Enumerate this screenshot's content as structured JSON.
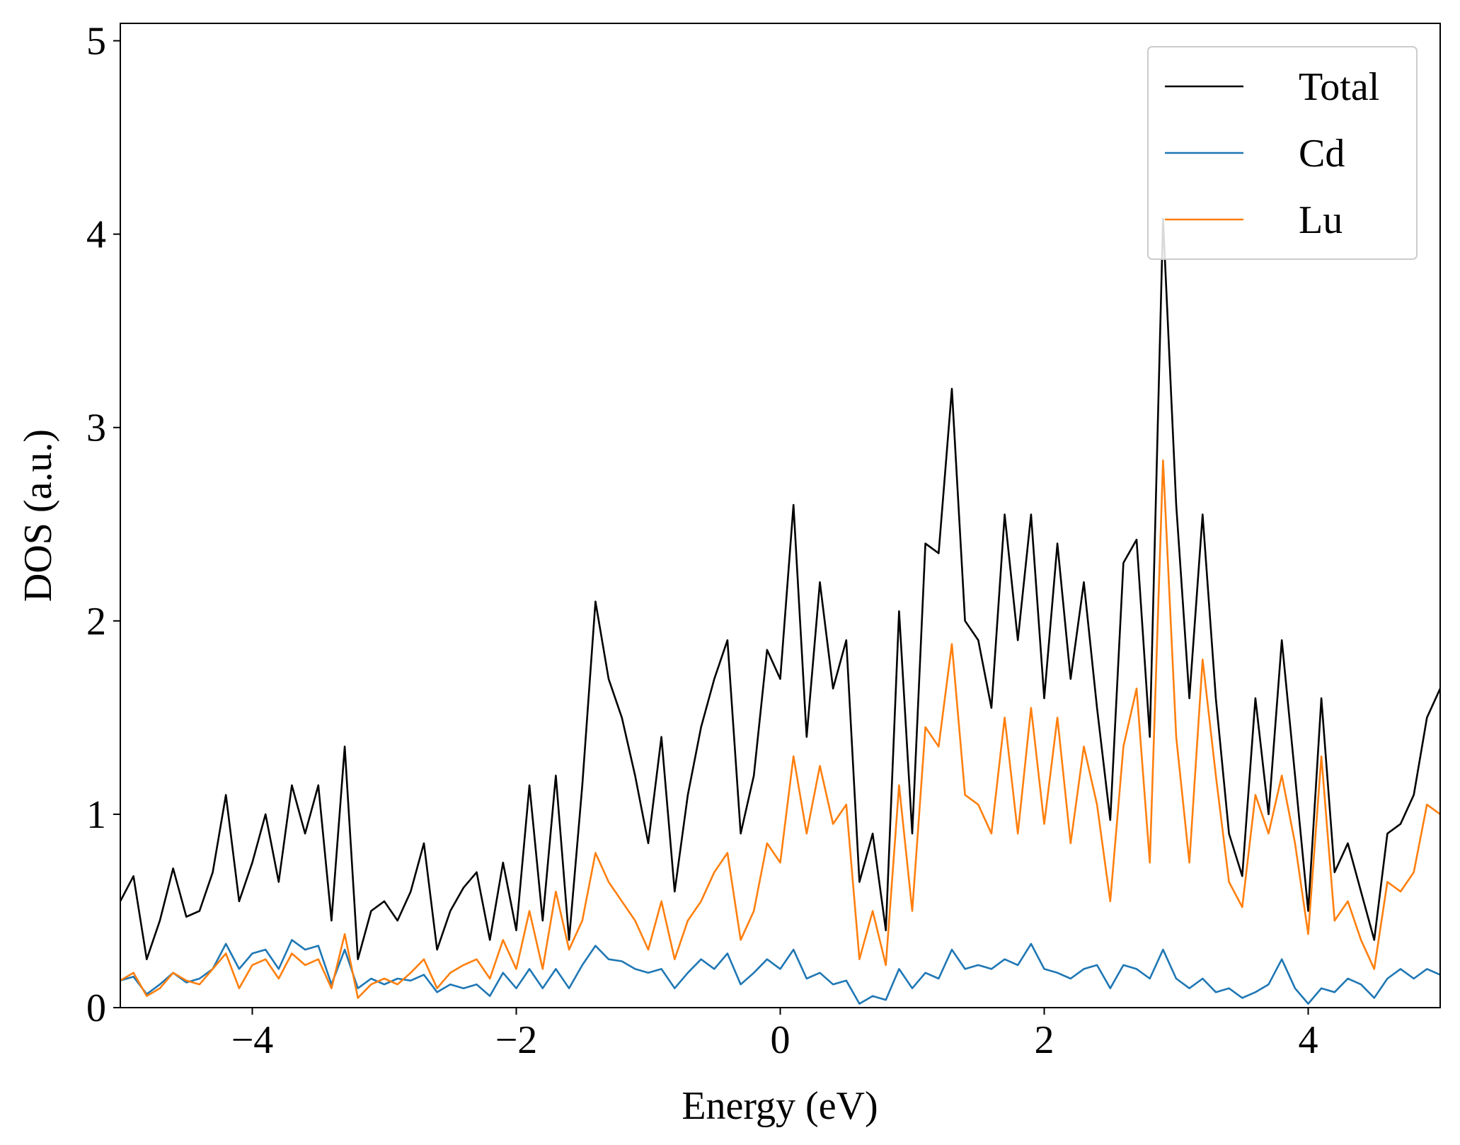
{
  "chart_data": {
    "type": "line",
    "xlabel": "Energy (eV)",
    "ylabel": "DOS (a.u.)",
    "xlim": [
      -5,
      5
    ],
    "ylim": [
      0,
      5.09
    ],
    "xticks": [
      {
        "value": -4,
        "label": "−4"
      },
      {
        "value": -2,
        "label": "−2"
      },
      0,
      2,
      4
    ],
    "yticks": [
      0,
      1,
      2,
      3,
      4,
      5
    ],
    "legend": "upper right",
    "x": [
      -5.0,
      -4.9,
      -4.8,
      -4.7,
      -4.6,
      -4.5,
      -4.4,
      -4.3,
      -4.2,
      -4.1,
      -4.0,
      -3.9,
      -3.8,
      -3.7,
      -3.6,
      -3.5,
      -3.4,
      -3.3,
      -3.2,
      -3.1,
      -3.0,
      -2.9,
      -2.8,
      -2.7,
      -2.6,
      -2.5,
      -2.4,
      -2.3,
      -2.2,
      -2.1,
      -2.0,
      -1.9,
      -1.8,
      -1.7,
      -1.6,
      -1.5,
      -1.4,
      -1.3,
      -1.2,
      -1.1,
      -1.0,
      -0.9,
      -0.8,
      -0.7,
      -0.6,
      -0.5,
      -0.4,
      -0.3,
      -0.2,
      -0.1,
      0.0,
      0.1,
      0.2,
      0.3,
      0.4,
      0.5,
      0.6,
      0.7,
      0.8,
      0.9,
      1.0,
      1.1,
      1.2,
      1.3,
      1.4,
      1.5,
      1.6,
      1.7,
      1.8,
      1.9,
      2.0,
      2.1,
      2.2,
      2.3,
      2.4,
      2.5,
      2.6,
      2.7,
      2.8,
      2.9,
      3.0,
      3.1,
      3.2,
      3.3,
      3.4,
      3.5,
      3.6,
      3.7,
      3.8,
      3.9,
      4.0,
      4.1,
      4.2,
      4.3,
      4.4,
      4.5,
      4.6,
      4.7,
      4.8,
      4.9,
      5.0
    ],
    "series": [
      {
        "name": "Total",
        "color": "#000000",
        "values": [
          0.55,
          0.68,
          0.25,
          0.45,
          0.72,
          0.47,
          0.5,
          0.7,
          1.1,
          0.55,
          0.75,
          1.0,
          0.65,
          1.15,
          0.9,
          1.15,
          0.45,
          1.35,
          0.25,
          0.5,
          0.55,
          0.45,
          0.6,
          0.85,
          0.3,
          0.5,
          0.62,
          0.7,
          0.35,
          0.75,
          0.4,
          1.15,
          0.45,
          1.2,
          0.35,
          1.15,
          2.1,
          1.7,
          1.5,
          1.2,
          0.85,
          1.4,
          0.6,
          1.1,
          1.45,
          1.7,
          1.9,
          0.9,
          1.2,
          1.85,
          1.7,
          2.6,
          1.4,
          2.2,
          1.65,
          1.9,
          0.65,
          0.9,
          0.4,
          2.05,
          0.9,
          2.4,
          2.35,
          3.2,
          2.0,
          1.9,
          1.55,
          2.55,
          1.9,
          2.55,
          1.6,
          2.4,
          1.7,
          2.2,
          1.55,
          0.97,
          2.3,
          2.42,
          1.4,
          4.08,
          2.6,
          1.6,
          2.55,
          1.6,
          0.9,
          0.68,
          1.6,
          1.0,
          1.9,
          1.2,
          0.5,
          1.6,
          0.7,
          0.85,
          0.6,
          0.35,
          0.9,
          0.95,
          1.1,
          1.5,
          1.65
        ]
      },
      {
        "name": "Cd",
        "color": "#1f77b4",
        "values": [
          0.14,
          0.16,
          0.07,
          0.12,
          0.18,
          0.13,
          0.15,
          0.2,
          0.33,
          0.2,
          0.28,
          0.3,
          0.2,
          0.35,
          0.3,
          0.32,
          0.12,
          0.3,
          0.1,
          0.15,
          0.12,
          0.15,
          0.14,
          0.17,
          0.08,
          0.12,
          0.1,
          0.12,
          0.06,
          0.18,
          0.1,
          0.2,
          0.1,
          0.2,
          0.1,
          0.22,
          0.32,
          0.25,
          0.24,
          0.2,
          0.18,
          0.2,
          0.1,
          0.18,
          0.25,
          0.2,
          0.28,
          0.12,
          0.18,
          0.25,
          0.2,
          0.3,
          0.15,
          0.18,
          0.12,
          0.14,
          0.02,
          0.06,
          0.04,
          0.2,
          0.1,
          0.18,
          0.15,
          0.3,
          0.2,
          0.22,
          0.2,
          0.25,
          0.22,
          0.33,
          0.2,
          0.18,
          0.15,
          0.2,
          0.22,
          0.1,
          0.22,
          0.2,
          0.15,
          0.3,
          0.15,
          0.1,
          0.15,
          0.08,
          0.1,
          0.05,
          0.08,
          0.12,
          0.25,
          0.1,
          0.02,
          0.1,
          0.08,
          0.15,
          0.12,
          0.05,
          0.15,
          0.2,
          0.15,
          0.2,
          0.17
        ]
      },
      {
        "name": "Lu",
        "color": "#ff7f0e",
        "values": [
          0.14,
          0.18,
          0.06,
          0.1,
          0.18,
          0.14,
          0.12,
          0.2,
          0.28,
          0.1,
          0.22,
          0.25,
          0.15,
          0.28,
          0.22,
          0.25,
          0.1,
          0.38,
          0.05,
          0.12,
          0.15,
          0.12,
          0.18,
          0.25,
          0.1,
          0.18,
          0.22,
          0.25,
          0.15,
          0.35,
          0.2,
          0.5,
          0.2,
          0.6,
          0.3,
          0.45,
          0.8,
          0.65,
          0.55,
          0.45,
          0.3,
          0.55,
          0.25,
          0.45,
          0.55,
          0.7,
          0.8,
          0.35,
          0.5,
          0.85,
          0.75,
          1.3,
          0.9,
          1.25,
          0.95,
          1.05,
          0.25,
          0.5,
          0.22,
          1.15,
          0.5,
          1.45,
          1.35,
          1.88,
          1.1,
          1.05,
          0.9,
          1.5,
          0.9,
          1.55,
          0.95,
          1.5,
          0.85,
          1.35,
          1.05,
          0.55,
          1.35,
          1.65,
          0.75,
          2.83,
          1.4,
          0.75,
          1.8,
          1.2,
          0.65,
          0.52,
          1.1,
          0.9,
          1.2,
          0.85,
          0.38,
          1.3,
          0.45,
          0.55,
          0.35,
          0.2,
          0.65,
          0.6,
          0.7,
          1.05,
          1.0
        ]
      }
    ]
  }
}
